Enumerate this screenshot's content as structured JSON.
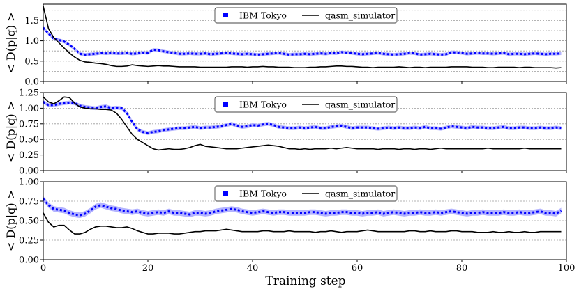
{
  "chart_data": {
    "type": "line",
    "xlabel": "Training step",
    "xlim": [
      0,
      100
    ],
    "xticks": [
      0,
      20,
      40,
      60,
      80,
      100
    ],
    "panels": [
      {
        "ylabel": "< D(p|q) >",
        "ylim": [
          0.0,
          1.9
        ],
        "yticks": [
          "0.0",
          "0.5",
          "1.0",
          "1.5"
        ],
        "gridlines": [
          0.25,
          0.5,
          0.75,
          1.0,
          1.25,
          1.5,
          1.75
        ],
        "legend": {
          "items": [
            "IBM Tokyo",
            "qasm_simulator"
          ]
        },
        "series": [
          {
            "name": "IBM Tokyo",
            "style": "dotted-band",
            "color": "#0000ff",
            "band_color": "#b3b3ff",
            "band_halfwidth": 0.04,
            "values": [
              1.32,
              1.18,
              1.05,
              1.02,
              0.98,
              0.9,
              0.8,
              0.68,
              0.66,
              0.67,
              0.68,
              0.7,
              0.69,
              0.7,
              0.69,
              0.69,
              0.7,
              0.68,
              0.69,
              0.71,
              0.7,
              0.78,
              0.77,
              0.74,
              0.72,
              0.7,
              0.68,
              0.68,
              0.69,
              0.68,
              0.68,
              0.69,
              0.67,
              0.68,
              0.69,
              0.7,
              0.69,
              0.68,
              0.67,
              0.68,
              0.67,
              0.66,
              0.67,
              0.68,
              0.69,
              0.7,
              0.68,
              0.66,
              0.67,
              0.67,
              0.68,
              0.67,
              0.68,
              0.69,
              0.68,
              0.7,
              0.69,
              0.72,
              0.71,
              0.7,
              0.68,
              0.67,
              0.68,
              0.69,
              0.7,
              0.68,
              0.67,
              0.66,
              0.67,
              0.68,
              0.7,
              0.69,
              0.66,
              0.67,
              0.68,
              0.67,
              0.66,
              0.67,
              0.72,
              0.71,
              0.7,
              0.68,
              0.69,
              0.7,
              0.69,
              0.69,
              0.68,
              0.69,
              0.7,
              0.67,
              0.68,
              0.68,
              0.67,
              0.68,
              0.69,
              0.68,
              0.67,
              0.68,
              0.68,
              0.69
            ]
          },
          {
            "name": "qasm_simulator",
            "style": "solid",
            "color": "#000000",
            "values": [
              1.85,
              1.3,
              1.08,
              0.95,
              0.82,
              0.7,
              0.6,
              0.52,
              0.48,
              0.47,
              0.45,
              0.44,
              0.42,
              0.39,
              0.37,
              0.37,
              0.38,
              0.41,
              0.39,
              0.38,
              0.37,
              0.38,
              0.39,
              0.38,
              0.38,
              0.37,
              0.36,
              0.36,
              0.36,
              0.36,
              0.35,
              0.35,
              0.35,
              0.35,
              0.35,
              0.35,
              0.36,
              0.36,
              0.36,
              0.35,
              0.36,
              0.36,
              0.37,
              0.36,
              0.36,
              0.35,
              0.35,
              0.35,
              0.34,
              0.34,
              0.34,
              0.35,
              0.35,
              0.36,
              0.36,
              0.37,
              0.38,
              0.38,
              0.37,
              0.37,
              0.36,
              0.35,
              0.35,
              0.34,
              0.35,
              0.35,
              0.35,
              0.35,
              0.36,
              0.35,
              0.34,
              0.35,
              0.35,
              0.34,
              0.35,
              0.35,
              0.35,
              0.35,
              0.36,
              0.36,
              0.36,
              0.36,
              0.35,
              0.35,
              0.35,
              0.34,
              0.34,
              0.35,
              0.35,
              0.35,
              0.35,
              0.34,
              0.35,
              0.35,
              0.34,
              0.34,
              0.34,
              0.34,
              0.33,
              0.34
            ]
          }
        ]
      },
      {
        "ylabel": "< D(p|q) >",
        "ylim": [
          0.0,
          1.25
        ],
        "yticks": [
          "0.00",
          "0.25",
          "0.50",
          "0.75",
          "1.00",
          "1.25"
        ],
        "gridlines": [
          0.25,
          0.5,
          0.75,
          1.0
        ],
        "legend": {
          "items": [
            "IBM Tokyo",
            "qasm_simulator"
          ]
        },
        "series": [
          {
            "name": "IBM Tokyo",
            "style": "dotted-band",
            "color": "#0000ff",
            "band_color": "#b3b3ff",
            "band_halfwidth": 0.03,
            "values": [
              1.1,
              1.05,
              1.05,
              1.07,
              1.08,
              1.09,
              1.08,
              1.04,
              1.02,
              1.01,
              1.0,
              1.02,
              1.03,
              1.0,
              1.01,
              1.0,
              0.92,
              0.78,
              0.66,
              0.62,
              0.6,
              0.62,
              0.63,
              0.65,
              0.66,
              0.67,
              0.68,
              0.68,
              0.69,
              0.7,
              0.68,
              0.69,
              0.69,
              0.7,
              0.71,
              0.73,
              0.75,
              0.72,
              0.7,
              0.71,
              0.73,
              0.72,
              0.74,
              0.75,
              0.73,
              0.7,
              0.69,
              0.68,
              0.68,
              0.69,
              0.68,
              0.69,
              0.7,
              0.68,
              0.68,
              0.7,
              0.71,
              0.72,
              0.7,
              0.68,
              0.69,
              0.69,
              0.69,
              0.68,
              0.67,
              0.68,
              0.69,
              0.68,
              0.69,
              0.68,
              0.68,
              0.69,
              0.68,
              0.7,
              0.68,
              0.68,
              0.67,
              0.69,
              0.71,
              0.7,
              0.69,
              0.68,
              0.7,
              0.69,
              0.69,
              0.68,
              0.68,
              0.69,
              0.7,
              0.68,
              0.68,
              0.69,
              0.69,
              0.68,
              0.68,
              0.69,
              0.68,
              0.68,
              0.69,
              0.68
            ]
          },
          {
            "name": "qasm_simulator",
            "style": "solid",
            "color": "#000000",
            "values": [
              1.18,
              1.1,
              1.07,
              1.12,
              1.18,
              1.17,
              1.08,
              1.02,
              1.0,
              0.99,
              0.99,
              0.98,
              0.98,
              0.97,
              0.92,
              0.82,
              0.7,
              0.58,
              0.5,
              0.45,
              0.4,
              0.35,
              0.33,
              0.34,
              0.35,
              0.34,
              0.34,
              0.35,
              0.37,
              0.4,
              0.42,
              0.39,
              0.38,
              0.37,
              0.36,
              0.35,
              0.35,
              0.35,
              0.36,
              0.37,
              0.38,
              0.39,
              0.4,
              0.41,
              0.4,
              0.39,
              0.37,
              0.35,
              0.35,
              0.34,
              0.35,
              0.34,
              0.35,
              0.35,
              0.35,
              0.36,
              0.35,
              0.36,
              0.37,
              0.36,
              0.35,
              0.35,
              0.35,
              0.35,
              0.34,
              0.35,
              0.35,
              0.35,
              0.34,
              0.35,
              0.35,
              0.34,
              0.35,
              0.35,
              0.34,
              0.35,
              0.36,
              0.35,
              0.35,
              0.35,
              0.35,
              0.35,
              0.35,
              0.35,
              0.35,
              0.36,
              0.35,
              0.35,
              0.35,
              0.35,
              0.35,
              0.35,
              0.36,
              0.35,
              0.35,
              0.35,
              0.35,
              0.35,
              0.35,
              0.35
            ]
          }
        ]
      },
      {
        "ylabel": "< D(p|q) >",
        "ylim": [
          0.0,
          1.0
        ],
        "yticks": [
          "0.00",
          "0.25",
          "0.50",
          "0.75",
          "1.00"
        ],
        "gridlines": [
          0.25,
          0.5,
          0.75
        ],
        "legend": {
          "items": [
            "IBM Tokyo",
            "qasm_simulator"
          ]
        },
        "series": [
          {
            "name": "IBM Tokyo",
            "style": "dotted-band",
            "color": "#0000ff",
            "band_color": "#b3b3ff",
            "band_halfwidth": 0.035,
            "values": [
              0.78,
              0.7,
              0.65,
              0.64,
              0.63,
              0.6,
              0.58,
              0.57,
              0.59,
              0.63,
              0.68,
              0.7,
              0.68,
              0.66,
              0.65,
              0.63,
              0.62,
              0.61,
              0.62,
              0.6,
              0.59,
              0.6,
              0.61,
              0.6,
              0.62,
              0.6,
              0.6,
              0.59,
              0.58,
              0.6,
              0.6,
              0.59,
              0.6,
              0.62,
              0.63,
              0.64,
              0.65,
              0.64,
              0.62,
              0.61,
              0.6,
              0.61,
              0.62,
              0.61,
              0.6,
              0.61,
              0.61,
              0.6,
              0.6,
              0.6,
              0.6,
              0.61,
              0.61,
              0.6,
              0.59,
              0.6,
              0.6,
              0.61,
              0.61,
              0.6,
              0.6,
              0.59,
              0.6,
              0.6,
              0.61,
              0.59,
              0.6,
              0.61,
              0.6,
              0.59,
              0.6,
              0.6,
              0.61,
              0.6,
              0.6,
              0.61,
              0.6,
              0.61,
              0.62,
              0.61,
              0.6,
              0.59,
              0.6,
              0.6,
              0.61,
              0.6,
              0.6,
              0.6,
              0.61,
              0.6,
              0.6,
              0.61,
              0.6,
              0.6,
              0.61,
              0.62,
              0.6,
              0.6,
              0.59,
              0.63
            ]
          },
          {
            "name": "qasm_simulator",
            "style": "solid",
            "color": "#000000",
            "values": [
              0.6,
              0.48,
              0.42,
              0.44,
              0.44,
              0.38,
              0.33,
              0.33,
              0.35,
              0.39,
              0.42,
              0.43,
              0.43,
              0.42,
              0.41,
              0.41,
              0.42,
              0.4,
              0.37,
              0.35,
              0.33,
              0.33,
              0.34,
              0.34,
              0.34,
              0.33,
              0.33,
              0.34,
              0.35,
              0.36,
              0.36,
              0.37,
              0.37,
              0.37,
              0.38,
              0.39,
              0.38,
              0.37,
              0.36,
              0.36,
              0.36,
              0.36,
              0.37,
              0.37,
              0.36,
              0.36,
              0.36,
              0.37,
              0.36,
              0.36,
              0.36,
              0.36,
              0.35,
              0.36,
              0.36,
              0.37,
              0.36,
              0.35,
              0.36,
              0.36,
              0.36,
              0.37,
              0.38,
              0.37,
              0.36,
              0.36,
              0.36,
              0.36,
              0.36,
              0.36,
              0.37,
              0.37,
              0.36,
              0.36,
              0.37,
              0.36,
              0.36,
              0.36,
              0.37,
              0.37,
              0.36,
              0.36,
              0.36,
              0.35,
              0.35,
              0.35,
              0.36,
              0.35,
              0.35,
              0.36,
              0.35,
              0.35,
              0.36,
              0.35,
              0.35,
              0.36,
              0.36,
              0.36,
              0.36,
              0.36
            ]
          }
        ]
      }
    ]
  }
}
